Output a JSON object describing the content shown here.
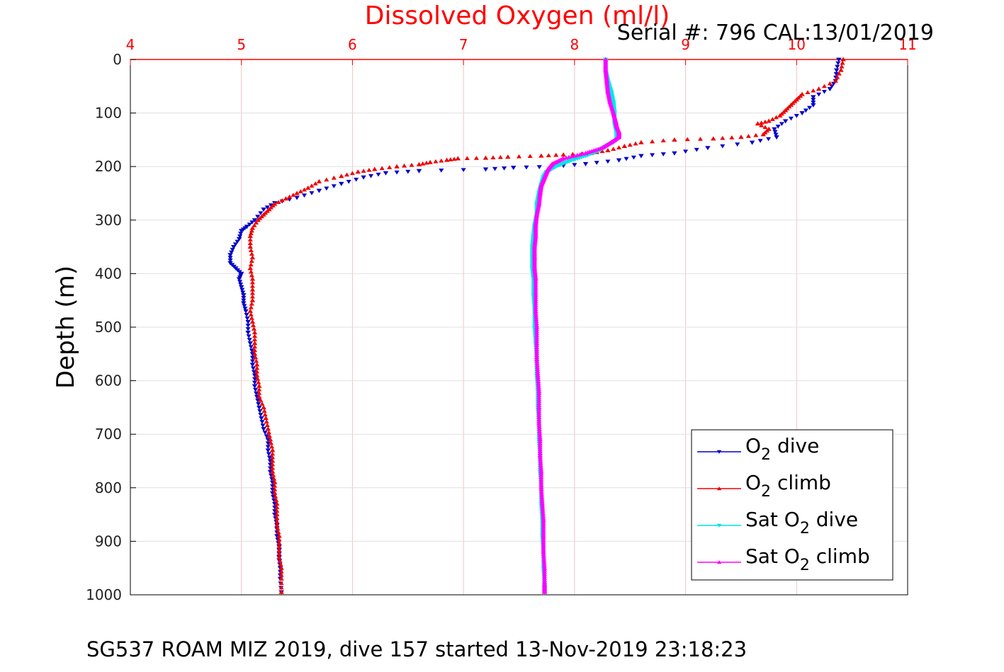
{
  "chart_data": {
    "type": "scatter",
    "title": "Dissolved Oxygen (ml/l)",
    "annotation": "Serial #: 796  CAL:13/01/2019",
    "footer": "SG537 ROAM MIZ 2019, dive 157 started 13-Nov-2019 23:18:23",
    "xlabel": "",
    "ylabel": "Depth (m)",
    "xlim": [
      4,
      11
    ],
    "ylim": [
      0,
      1000
    ],
    "y_reversed": true,
    "x_axis_position": "top",
    "xticks": [
      "4",
      "5",
      "6",
      "7",
      "8",
      "9",
      "10",
      "11"
    ],
    "yticks": [
      "0",
      "100",
      "200",
      "300",
      "400",
      "500",
      "600",
      "700",
      "800",
      "900",
      "1000"
    ],
    "grid": true,
    "colors": {
      "axis_top": "#ff0000",
      "grid": "#e0e0e0",
      "o2_dive": "#0000cc",
      "o2_climb": "#ee0000",
      "sat_dive": "#00e5e5",
      "sat_climb": "#ff00ff"
    },
    "legend": {
      "position": "bottom-right",
      "entries": [
        {
          "pre": "O",
          "sub": "2",
          "post": " dive"
        },
        {
          "pre": "O",
          "sub": "2",
          "post": " climb"
        },
        {
          "pre": "Sat O",
          "sub": "2",
          "post": " dive"
        },
        {
          "pre": "Sat O",
          "sub": "2",
          "post": " climb"
        }
      ]
    },
    "series": [
      {
        "key": "o2_dive",
        "marker": "triangle-down",
        "points": [
          [
            10.38,
            0
          ],
          [
            10.36,
            20
          ],
          [
            10.35,
            40
          ],
          [
            10.3,
            55
          ],
          [
            10.15,
            70
          ],
          [
            10.15,
            85
          ],
          [
            10.05,
            100
          ],
          [
            9.9,
            115
          ],
          [
            9.8,
            130
          ],
          [
            9.82,
            145
          ],
          [
            9.6,
            155
          ],
          [
            9.2,
            165
          ],
          [
            8.9,
            175
          ],
          [
            8.6,
            180
          ],
          [
            8.4,
            188
          ],
          [
            8.1,
            195
          ],
          [
            7.8,
            200
          ],
          [
            7.45,
            202
          ],
          [
            7.2,
            205
          ],
          [
            6.6,
            208
          ],
          [
            6.3,
            212
          ],
          [
            6.1,
            220
          ],
          [
            5.9,
            232
          ],
          [
            5.7,
            245
          ],
          [
            5.5,
            258
          ],
          [
            5.3,
            268
          ],
          [
            5.2,
            280
          ],
          [
            5.12,
            300
          ],
          [
            5.05,
            312
          ],
          [
            5.0,
            320
          ],
          [
            4.98,
            335
          ],
          [
            4.93,
            350
          ],
          [
            4.9,
            365
          ],
          [
            4.9,
            380
          ],
          [
            4.95,
            390
          ],
          [
            5.0,
            400
          ],
          [
            4.98,
            410
          ],
          [
            5.0,
            425
          ],
          [
            5.02,
            440
          ],
          [
            5.02,
            455
          ],
          [
            5.04,
            470
          ],
          [
            5.06,
            490
          ],
          [
            5.06,
            510
          ],
          [
            5.08,
            530
          ],
          [
            5.1,
            550
          ],
          [
            5.1,
            570
          ],
          [
            5.12,
            590
          ],
          [
            5.12,
            610
          ],
          [
            5.14,
            630
          ],
          [
            5.16,
            650
          ],
          [
            5.18,
            670
          ],
          [
            5.2,
            690
          ],
          [
            5.24,
            710
          ],
          [
            5.24,
            730
          ],
          [
            5.26,
            750
          ],
          [
            5.26,
            770
          ],
          [
            5.28,
            790
          ],
          [
            5.28,
            810
          ],
          [
            5.3,
            830
          ],
          [
            5.3,
            850
          ],
          [
            5.32,
            870
          ],
          [
            5.32,
            890
          ],
          [
            5.34,
            910
          ],
          [
            5.34,
            930
          ],
          [
            5.35,
            950
          ],
          [
            5.35,
            970
          ],
          [
            5.36,
            995
          ]
        ]
      },
      {
        "key": "o2_climb",
        "marker": "triangle-up",
        "points": [
          [
            10.42,
            0
          ],
          [
            10.4,
            20
          ],
          [
            10.35,
            40
          ],
          [
            10.2,
            55
          ],
          [
            10.05,
            65
          ],
          [
            10.0,
            75
          ],
          [
            9.95,
            85
          ],
          [
            9.9,
            95
          ],
          [
            9.85,
            105
          ],
          [
            9.75,
            115
          ],
          [
            9.65,
            120
          ],
          [
            9.75,
            130
          ],
          [
            9.7,
            140
          ],
          [
            9.5,
            145
          ],
          [
            9.25,
            148
          ],
          [
            8.9,
            150
          ],
          [
            8.6,
            155
          ],
          [
            8.45,
            162
          ],
          [
            8.3,
            170
          ],
          [
            8.15,
            175
          ],
          [
            7.9,
            178
          ],
          [
            7.7,
            180
          ],
          [
            7.4,
            182
          ],
          [
            7.2,
            184
          ],
          [
            6.95,
            185
          ],
          [
            6.85,
            188
          ],
          [
            6.7,
            192
          ],
          [
            6.6,
            196
          ],
          [
            6.4,
            200
          ],
          [
            6.2,
            205
          ],
          [
            6.05,
            210
          ],
          [
            5.9,
            218
          ],
          [
            5.7,
            228
          ],
          [
            5.6,
            240
          ],
          [
            5.5,
            250
          ],
          [
            5.4,
            260
          ],
          [
            5.3,
            270
          ],
          [
            5.25,
            280
          ],
          [
            5.2,
            290
          ],
          [
            5.15,
            300
          ],
          [
            5.1,
            315
          ],
          [
            5.08,
            330
          ],
          [
            5.08,
            350
          ],
          [
            5.1,
            370
          ],
          [
            5.08,
            390
          ],
          [
            5.1,
            410
          ],
          [
            5.1,
            430
          ],
          [
            5.1,
            450
          ],
          [
            5.08,
            470
          ],
          [
            5.1,
            490
          ],
          [
            5.12,
            510
          ],
          [
            5.12,
            530
          ],
          [
            5.12,
            550
          ],
          [
            5.14,
            570
          ],
          [
            5.14,
            590
          ],
          [
            5.16,
            610
          ],
          [
            5.16,
            630
          ],
          [
            5.2,
            650
          ],
          [
            5.22,
            670
          ],
          [
            5.24,
            690
          ],
          [
            5.26,
            710
          ],
          [
            5.28,
            730
          ],
          [
            5.28,
            750
          ],
          [
            5.28,
            770
          ],
          [
            5.3,
            790
          ],
          [
            5.3,
            810
          ],
          [
            5.32,
            830
          ],
          [
            5.32,
            850
          ],
          [
            5.32,
            870
          ],
          [
            5.34,
            890
          ],
          [
            5.34,
            910
          ],
          [
            5.34,
            930
          ],
          [
            5.36,
            950
          ],
          [
            5.36,
            970
          ],
          [
            5.36,
            995
          ]
        ]
      },
      {
        "key": "sat_dive",
        "marker": "triangle-down",
        "points": [
          [
            8.28,
            0
          ],
          [
            8.28,
            20
          ],
          [
            8.3,
            40
          ],
          [
            8.33,
            60
          ],
          [
            8.35,
            80
          ],
          [
            8.36,
            100
          ],
          [
            8.36,
            120
          ],
          [
            8.38,
            140
          ],
          [
            8.38,
            150
          ],
          [
            8.3,
            160
          ],
          [
            8.22,
            170
          ],
          [
            8.1,
            180
          ],
          [
            7.95,
            190
          ],
          [
            7.83,
            200
          ],
          [
            7.75,
            210
          ],
          [
            7.72,
            220
          ],
          [
            7.7,
            235
          ],
          [
            7.68,
            250
          ],
          [
            7.66,
            270
          ],
          [
            7.66,
            290
          ],
          [
            7.64,
            310
          ],
          [
            7.63,
            330
          ],
          [
            7.62,
            350
          ],
          [
            7.62,
            370
          ],
          [
            7.62,
            390
          ],
          [
            7.63,
            410
          ],
          [
            7.63,
            440
          ],
          [
            7.64,
            470
          ],
          [
            7.64,
            500
          ],
          [
            7.65,
            530
          ],
          [
            7.66,
            560
          ],
          [
            7.66,
            590
          ],
          [
            7.67,
            620
          ],
          [
            7.67,
            650
          ],
          [
            7.68,
            680
          ],
          [
            7.68,
            710
          ],
          [
            7.69,
            740
          ],
          [
            7.69,
            770
          ],
          [
            7.7,
            800
          ],
          [
            7.7,
            830
          ],
          [
            7.71,
            860
          ],
          [
            7.71,
            890
          ],
          [
            7.72,
            920
          ],
          [
            7.72,
            950
          ],
          [
            7.73,
            980
          ],
          [
            7.73,
            995
          ]
        ]
      },
      {
        "key": "sat_climb",
        "marker": "triangle-up",
        "points": [
          [
            8.28,
            0
          ],
          [
            8.28,
            20
          ],
          [
            8.29,
            40
          ],
          [
            8.3,
            60
          ],
          [
            8.32,
            80
          ],
          [
            8.35,
            100
          ],
          [
            8.37,
            115
          ],
          [
            8.38,
            125
          ],
          [
            8.4,
            135
          ],
          [
            8.4,
            145
          ],
          [
            8.33,
            155
          ],
          [
            8.25,
            165
          ],
          [
            8.1,
            175
          ],
          [
            7.9,
            185
          ],
          [
            7.8,
            195
          ],
          [
            7.76,
            205
          ],
          [
            7.74,
            215
          ],
          [
            7.72,
            225
          ],
          [
            7.7,
            235
          ],
          [
            7.69,
            250
          ],
          [
            7.68,
            270
          ],
          [
            7.66,
            290
          ],
          [
            7.65,
            310
          ],
          [
            7.65,
            330
          ],
          [
            7.64,
            350
          ],
          [
            7.64,
            370
          ],
          [
            7.64,
            390
          ],
          [
            7.65,
            410
          ],
          [
            7.65,
            440
          ],
          [
            7.65,
            470
          ],
          [
            7.66,
            500
          ],
          [
            7.66,
            530
          ],
          [
            7.66,
            560
          ],
          [
            7.67,
            590
          ],
          [
            7.68,
            620
          ],
          [
            7.68,
            650
          ],
          [
            7.68,
            680
          ],
          [
            7.69,
            710
          ],
          [
            7.69,
            740
          ],
          [
            7.7,
            770
          ],
          [
            7.7,
            800
          ],
          [
            7.71,
            830
          ],
          [
            7.72,
            860
          ],
          [
            7.72,
            890
          ],
          [
            7.72,
            920
          ],
          [
            7.73,
            950
          ],
          [
            7.73,
            980
          ],
          [
            7.73,
            995
          ]
        ]
      }
    ]
  }
}
